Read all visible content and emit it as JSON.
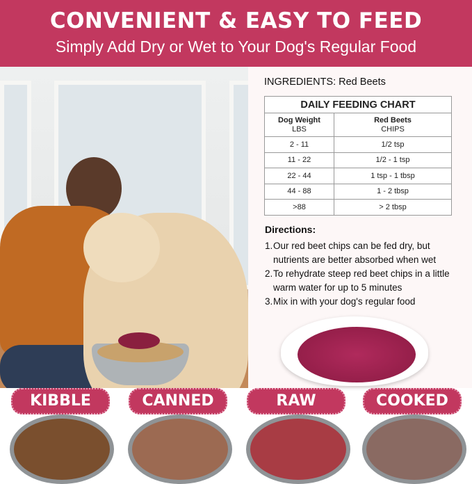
{
  "header": {
    "title": "CONVENIENT & EASY TO FEED",
    "subtitle": "Simply Add Dry or Wet to Your Dog's Regular Food"
  },
  "ingredients": "INGREDIENTS: Red Beets",
  "feeding_chart": {
    "title": "DAILY FEEDING CHART",
    "col1_header": "Dog Weight",
    "col1_sub": "LBS",
    "col2_header": "Red Beets",
    "col2_sub": "CHIPS",
    "rows": [
      {
        "weight": "2 - 11",
        "amount": "1/2 tsp"
      },
      {
        "weight": "11 - 22",
        "amount": "1/2 - 1 tsp"
      },
      {
        "weight": "22 - 44",
        "amount": "1 tsp - 1 tbsp"
      },
      {
        "weight": "44 - 88",
        "amount": "1 - 2 tbsp"
      },
      {
        "weight": ">88",
        "amount": "> 2 tbsp"
      }
    ]
  },
  "directions": {
    "title": "Directions:",
    "items": [
      {
        "n": "1.",
        "text": "Our red beet chips can be fed dry, but nutrients are better absorbed when wet"
      },
      {
        "n": "2.",
        "text": "To rehydrate steep red beet chips in a little warm water for up to 5 minutes"
      },
      {
        "n": "3.",
        "text": "Mix in with your dog's regular food"
      }
    ]
  },
  "food_types": [
    {
      "label": "KIBBLE",
      "color": "#7a4f2e"
    },
    {
      "label": "CANNED",
      "color": "#9c6a52"
    },
    {
      "label": "RAW",
      "color": "#a83c44"
    },
    {
      "label": "COOKED",
      "color": "#8a6a62"
    }
  ],
  "colors": {
    "brand": "#c2385f",
    "beet": "#8a1a42"
  }
}
